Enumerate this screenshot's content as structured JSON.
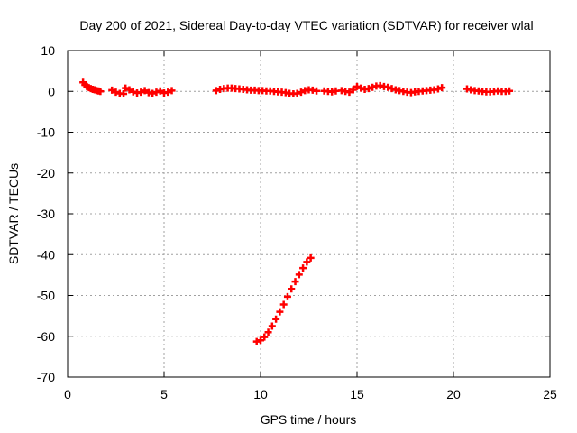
{
  "chart_data": {
    "type": "scatter",
    "title": "Day 200 of 2021, Sidereal Day-to-day VTEC variation (SDTVAR) for receiver wlal",
    "xlabel": "GPS time / hours",
    "ylabel": "SDTVAR / TECUs",
    "xlim": [
      0,
      25
    ],
    "ylim": [
      -70,
      10
    ],
    "x_ticks": [
      0,
      5,
      10,
      15,
      20,
      25
    ],
    "y_ticks": [
      10,
      0,
      -10,
      -20,
      -30,
      -40,
      -50,
      -60,
      -70
    ],
    "grid": true,
    "marker": "plus",
    "color": "#ff0000",
    "series": [
      {
        "segments": [
          {
            "x": [
              0.8,
              0.9,
              1.0,
              1.1,
              1.2,
              1.3,
              1.4,
              1.5,
              1.6,
              1.7
            ],
            "y": [
              2.2,
              1.6,
              1.2,
              0.9,
              0.7,
              0.5,
              0.4,
              0.2,
              0.1,
              0.0
            ]
          },
          {
            "x": [
              2.3,
              2.5,
              2.7,
              2.9,
              3.0,
              3.2,
              3.4,
              3.6,
              3.8,
              4.0,
              4.2,
              4.4,
              4.6,
              4.8,
              5.0,
              5.2,
              5.4
            ],
            "y": [
              0.3,
              -0.2,
              -0.5,
              -0.6,
              0.8,
              0.4,
              -0.1,
              -0.4,
              -0.2,
              0.2,
              -0.3,
              -0.5,
              -0.2,
              0.1,
              -0.4,
              -0.2,
              0.2
            ]
          },
          {
            "x": [
              7.7,
              7.9,
              8.1,
              8.3,
              8.5,
              8.7,
              8.9,
              9.1,
              9.3,
              9.5,
              9.7,
              9.9,
              10.1,
              10.3,
              10.5,
              10.7,
              10.9,
              11.1,
              11.3,
              11.5,
              11.7,
              11.9,
              12.1,
              12.3,
              12.5,
              12.7,
              12.9
            ],
            "y": [
              0.2,
              0.5,
              0.7,
              0.8,
              0.8,
              0.7,
              0.6,
              0.5,
              0.4,
              0.3,
              0.3,
              0.2,
              0.2,
              0.1,
              0.1,
              0.0,
              -0.1,
              -0.2,
              -0.3,
              -0.5,
              -0.6,
              -0.5,
              -0.2,
              0.2,
              0.4,
              0.3,
              0.1
            ]
          },
          {
            "x": [
              13.3,
              13.5,
              13.7,
              13.9,
              14.2,
              14.4,
              14.6,
              14.8,
              15.0,
              15.2,
              15.4,
              15.6,
              15.8,
              16.0,
              16.2,
              16.4,
              16.6,
              16.8,
              17.0,
              17.2,
              17.4,
              17.6,
              17.8,
              18.0,
              18.2,
              18.4,
              18.6,
              18.8,
              19.0,
              19.2,
              19.4
            ],
            "y": [
              0.1,
              0.0,
              -0.1,
              0.1,
              0.2,
              0.0,
              -0.2,
              0.4,
              1.2,
              0.8,
              0.5,
              0.7,
              1.0,
              1.3,
              1.4,
              1.2,
              1.0,
              0.7,
              0.4,
              0.2,
              0.0,
              -0.2,
              -0.3,
              -0.1,
              0.0,
              0.1,
              0.2,
              0.3,
              0.4,
              0.6,
              0.9
            ]
          },
          {
            "x": [
              20.7,
              20.9,
              21.1,
              21.3,
              21.5,
              21.7,
              21.9,
              22.1,
              22.3,
              22.5,
              22.7,
              22.9
            ],
            "y": [
              0.6,
              0.4,
              0.2,
              0.1,
              0.0,
              -0.1,
              -0.1,
              0.0,
              0.1,
              0.0,
              0.0,
              0.1
            ]
          },
          {
            "x": [
              9.8,
              10.0,
              10.2,
              10.4,
              10.6,
              10.8,
              11.0,
              11.2,
              11.4,
              11.6,
              11.8,
              12.0,
              12.2,
              12.4,
              12.6
            ],
            "y": [
              -61.3,
              -61.0,
              -60.2,
              -59.0,
              -57.5,
              -55.8,
              -54.0,
              -52.2,
              -50.3,
              -48.4,
              -46.6,
              -44.9,
              -43.3,
              -41.8,
              -40.8
            ]
          }
        ]
      }
    ]
  }
}
